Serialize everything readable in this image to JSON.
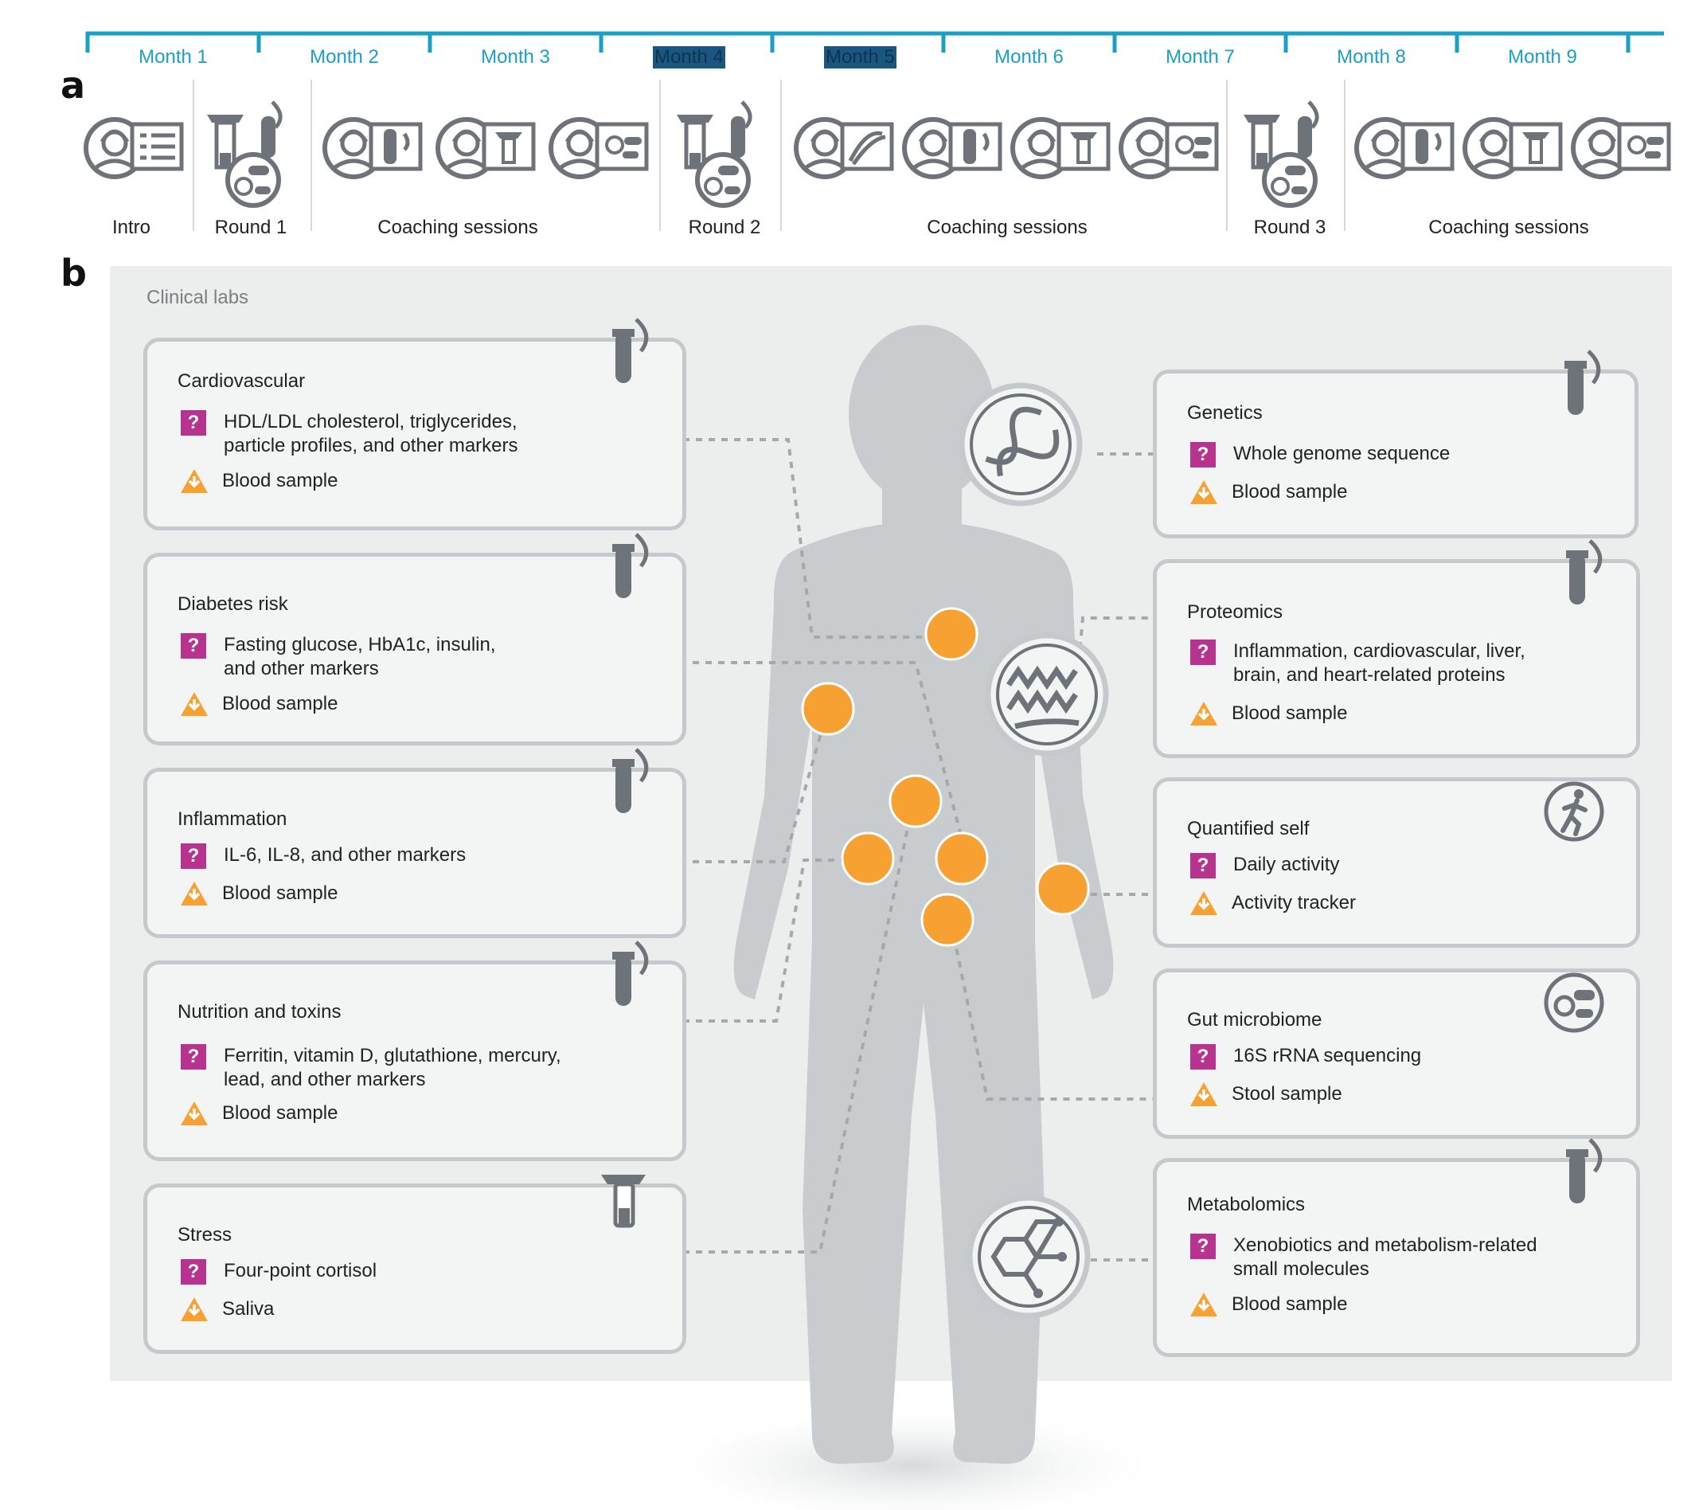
{
  "panel_a": {
    "letter": "a",
    "months": [
      {
        "label": "Month 1",
        "highlight": false
      },
      {
        "label": "Month 2",
        "highlight": false
      },
      {
        "label": "Month 3",
        "highlight": false
      },
      {
        "label": "Month 4",
        "highlight": true
      },
      {
        "label": "Month 5",
        "highlight": true
      },
      {
        "label": "Month 6",
        "highlight": false
      },
      {
        "label": "Month 7",
        "highlight": false
      },
      {
        "label": "Month 8",
        "highlight": false
      },
      {
        "label": "Month 9",
        "highlight": false
      }
    ],
    "stages": [
      "Intro",
      "Round 1",
      "Coaching sessions",
      "Round 2",
      "Coaching sessions",
      "Round 3",
      "Coaching sessions"
    ]
  },
  "panel_b": {
    "letter": "b",
    "section_label": "Clinical labs",
    "left_cards": [
      {
        "title": "Cardiovascular",
        "measure": "HDL/LDL cholesterol, triglycerides,\nparticle profiles, and other markers",
        "sample": "Blood sample",
        "icon": "blood-tube-icon"
      },
      {
        "title": "Diabetes risk",
        "measure": "Fasting glucose, HbA1c, insulin,\nand other markers",
        "sample": "Blood sample",
        "icon": "blood-tube-icon"
      },
      {
        "title": "Inflammation",
        "measure": "IL-6, IL-8, and other markers",
        "sample": "Blood sample",
        "icon": "blood-tube-icon"
      },
      {
        "title": "Nutrition and toxins",
        "measure": "Ferritin, vitamin D, glutathione, mercury,\nlead, and other markers",
        "sample": "Blood sample",
        "icon": "blood-tube-icon"
      },
      {
        "title": "Stress",
        "measure": "Four-point cortisol",
        "sample": "Saliva",
        "icon": "saliva-tube-icon"
      }
    ],
    "right_cards": [
      {
        "title": "Genetics",
        "measure": "Whole genome sequence",
        "sample": "Blood sample",
        "icon": "blood-tube-icon"
      },
      {
        "title": "Proteomics",
        "measure": "Inflammation, cardiovascular, liver,\nbrain, and heart-related proteins",
        "sample": "Blood sample",
        "icon": "blood-tube-icon"
      },
      {
        "title": "Quantified self",
        "measure": "Daily activity",
        "sample": "Activity tracker",
        "icon": "runner-icon"
      },
      {
        "title": "Gut microbiome",
        "measure": "16S rRNA sequencing",
        "sample": "Stool sample",
        "icon": "microbe-icon"
      },
      {
        "title": "Metabolomics",
        "measure": "Xenobiotics and metabolism-related\nsmall molecules",
        "sample": "Blood sample",
        "icon": "blood-tube-icon"
      }
    ],
    "marker_glyph": "?",
    "colors": {
      "accent_blue": "#1aa0c7",
      "question_magenta": "#b8338f",
      "warning_orange": "#f7a133",
      "organ_orange": "#f7a133",
      "body_gray": "#c8cbce",
      "icon_gray": "#6d7378"
    }
  }
}
